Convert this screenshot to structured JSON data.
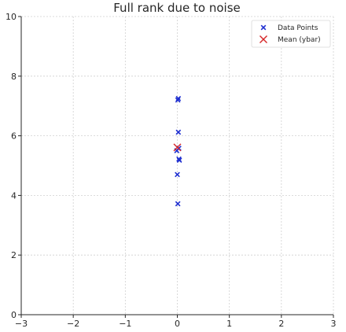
{
  "chart_data": {
    "type": "scatter",
    "title": "Full rank due to noise",
    "xlabel": "",
    "ylabel": "",
    "xlim": [
      -3,
      3
    ],
    "ylim": [
      0,
      10
    ],
    "xticks": [
      "−3",
      "−2",
      "−1",
      "0",
      "1",
      "2",
      "3"
    ],
    "yticks": [
      "0",
      "2",
      "4",
      "6",
      "8",
      "10"
    ],
    "grid": true,
    "legend_position": "top-right",
    "series": [
      {
        "name": "Data Points",
        "marker": "x",
        "color": "#1f2fd0",
        "points": [
          {
            "x": 0.02,
            "y": 7.25
          },
          {
            "x": 0.01,
            "y": 7.2
          },
          {
            "x": 0.02,
            "y": 6.12
          },
          {
            "x": 0.03,
            "y": 5.58
          },
          {
            "x": -0.01,
            "y": 5.5
          },
          {
            "x": 0.03,
            "y": 5.22
          },
          {
            "x": 0.04,
            "y": 5.18
          },
          {
            "x": 0.0,
            "y": 4.7
          },
          {
            "x": 0.01,
            "y": 3.72
          }
        ]
      },
      {
        "name": "Mean (ybar)",
        "marker": "x",
        "color": "#d62728",
        "points": [
          {
            "x": 0.0,
            "y": 5.61
          }
        ]
      }
    ]
  }
}
